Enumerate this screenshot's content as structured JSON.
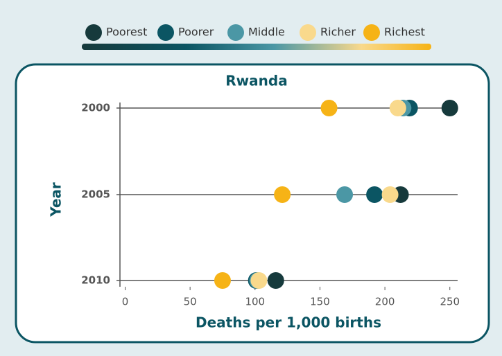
{
  "chart_data": {
    "type": "dot",
    "title": "Rwanda",
    "ylabel": "Year",
    "xlabel": "Deaths per 1,000 births",
    "categories": [
      "2000",
      "2005",
      "2010"
    ],
    "series": [
      {
        "name": "Poorest",
        "color": "#163a3c",
        "values": [
          250,
          212,
          116
        ]
      },
      {
        "name": "Poorer",
        "color": "#0b5563",
        "values": [
          219,
          192,
          101
        ]
      },
      {
        "name": "Middle",
        "color": "#4b97a5",
        "values": [
          214,
          169,
          102
        ]
      },
      {
        "name": "Richer",
        "color": "#f9d98c",
        "values": [
          210,
          204,
          103
        ]
      },
      {
        "name": "Richest",
        "color": "#f6b316",
        "values": [
          157,
          121,
          75
        ]
      }
    ],
    "xlim": [
      -4,
      256
    ],
    "xticks": [
      0,
      50,
      100,
      150,
      200,
      250
    ]
  }
}
